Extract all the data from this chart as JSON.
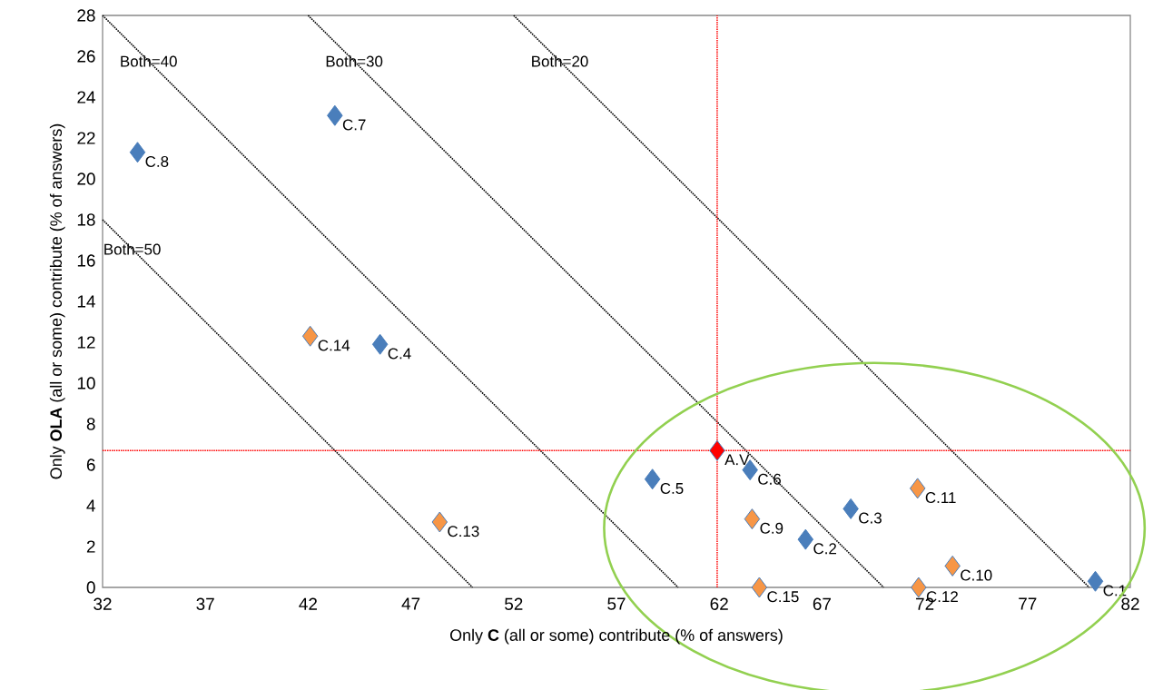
{
  "chart_data": {
    "type": "scatter",
    "xlabel": "Only **C** (all or some) contribute (% of answers)",
    "ylabel": "Only **OLA** (all or some) contribute (% of answers)",
    "xlim": [
      32,
      82
    ],
    "xticks": [
      32,
      37,
      42,
      47,
      52,
      57,
      62,
      67,
      72,
      77,
      82
    ],
    "ylim": [
      0,
      28
    ],
    "yticks": [
      0,
      2,
      4,
      6,
      8,
      10,
      12,
      14,
      16,
      18,
      20,
      22,
      24,
      26,
      28
    ],
    "grid": false,
    "legend": false,
    "marker": "diamond",
    "series": [
      {
        "type": "line",
        "name": "Both=50",
        "color": "#000000",
        "line_style": "dotted",
        "marker": "none",
        "x": [
          32,
          50
        ],
        "values": [
          18,
          0
        ]
      },
      {
        "type": "line",
        "name": "Both=40",
        "color": "#000000",
        "line_style": "dotted",
        "marker": "none",
        "x": [
          32,
          60
        ],
        "values": [
          28,
          0
        ]
      },
      {
        "type": "line",
        "name": "Both=30",
        "color": "#000000",
        "line_style": "dotted",
        "marker": "none",
        "x": [
          42,
          70
        ],
        "values": [
          28,
          0
        ]
      },
      {
        "type": "line",
        "name": "Both=20",
        "color": "#000000",
        "line_style": "dotted",
        "marker": "none",
        "x": [
          52,
          80
        ],
        "values": [
          28,
          0
        ]
      },
      {
        "color": "#4a7ebb",
        "x": [
          33.7,
          43.3,
          45.5,
          58.75,
          63.5,
          66.2,
          68.4,
          80.3
        ],
        "values": [
          21.3,
          23.1,
          11.9,
          5.3,
          5.75,
          2.35,
          3.85,
          0.3
        ]
      },
      {
        "color": "#f79646",
        "x": [
          42.1,
          48.4,
          63.6,
          63.95,
          71.65,
          73.35,
          71.7
        ],
        "values": [
          12.3,
          3.2,
          3.35,
          0,
          4.85,
          1.05,
          0
        ]
      },
      {
        "color": "#ff0000",
        "x": [
          61.9
        ],
        "values": [
          6.7
        ]
      }
    ],
    "ref_lines": [
      {
        "axis": "x",
        "value": 61.9,
        "color": "#ff0000",
        "line_style": "dotted"
      },
      {
        "axis": "y",
        "value": 6.7,
        "color": "#ff0000",
        "line_style": "dotted"
      }
    ],
    "annotations": [
      {
        "text": "C.8",
        "x": 33.7,
        "y": 21.3
      },
      {
        "text": "C.7",
        "x": 43.3,
        "y": 23.1
      },
      {
        "text": "C.4",
        "x": 45.5,
        "y": 11.9
      },
      {
        "text": "C.5",
        "x": 58.75,
        "y": 5.3
      },
      {
        "text": "C.6",
        "x": 63.5,
        "y": 5.75
      },
      {
        "text": "C.2",
        "x": 66.2,
        "y": 2.35
      },
      {
        "text": "C.3",
        "x": 68.4,
        "y": 3.85
      },
      {
        "text": "C.1",
        "x": 80.3,
        "y": 0.3
      },
      {
        "text": "C.14",
        "x": 42.1,
        "y": 12.3
      },
      {
        "text": "C.13",
        "x": 48.4,
        "y": 3.2
      },
      {
        "text": "C.9",
        "x": 63.6,
        "y": 3.35
      },
      {
        "text": "C.15",
        "x": 63.95,
        "y": 0
      },
      {
        "text": "C.11",
        "x": 71.65,
        "y": 4.85
      },
      {
        "text": "C.10",
        "x": 73.35,
        "y": 1.05
      },
      {
        "text": "C.12",
        "x": 71.7,
        "y": 0
      },
      {
        "text": "A.V.",
        "x": 61.9,
        "y": 6.7
      }
    ]
  }
}
